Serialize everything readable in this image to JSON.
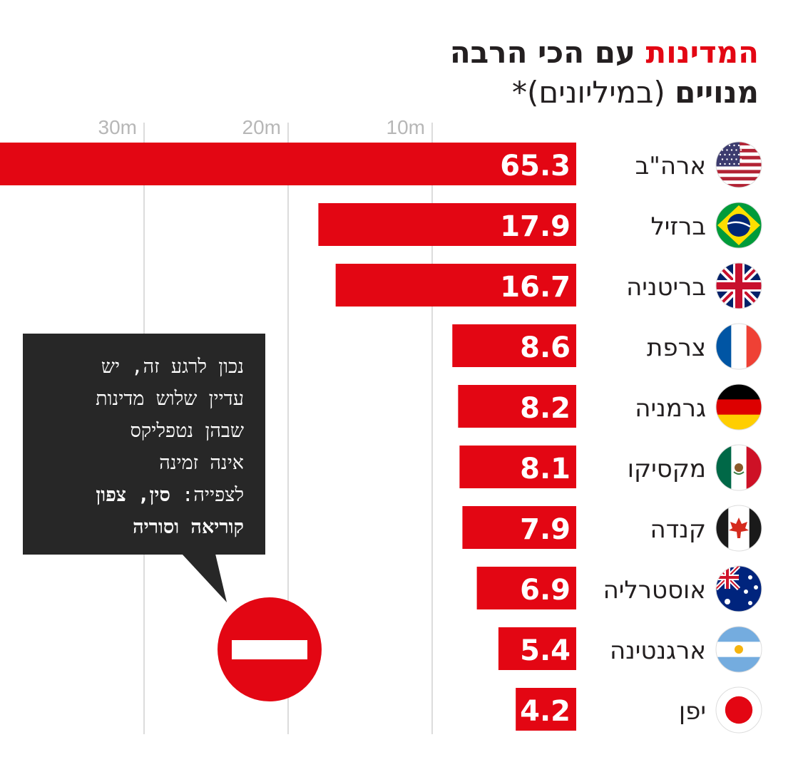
{
  "title": {
    "accent": "המדינות",
    "rest": "עם הכי הרבה"
  },
  "subtitle": {
    "bold": "מנויים",
    "regular": "(במיליונים)*"
  },
  "note": {
    "line1": "נכון לרגע זה, יש",
    "line2": "עדיין שלוש מדינות",
    "line3": "שבהן נטפליקס",
    "line4": "אינה זמינה",
    "line5_regular": "לצפייה: ",
    "line5_bold": "סין, צפון",
    "line6": "קוריאה וסוריה"
  },
  "icons": {
    "no_entry": "no-entry-icon"
  },
  "colors": {
    "bar": "#e30613",
    "note_bg": "#272727",
    "grid": "#d0d0d0"
  },
  "chart_data": {
    "type": "bar",
    "orientation": "horizontal",
    "categories": [
      "ארה\"ב",
      "ברזיל",
      "בריטניה",
      "צרפת",
      "גרמניה",
      "מקסיקו",
      "קנדה",
      "אוסטרליה",
      "ארגנטינה",
      "יפן"
    ],
    "values": [
      65.3,
      17.9,
      16.7,
      8.6,
      8.2,
      8.1,
      7.9,
      6.9,
      5.4,
      4.2
    ],
    "value_labels": [
      "65.3",
      "17.9",
      "16.7",
      "8.6",
      "8.2",
      "8.1",
      "7.9",
      "6.9",
      "5.4",
      "4.2"
    ],
    "flags": [
      "usa-flag-icon",
      "brazil-flag-icon",
      "uk-flag-icon",
      "france-flag-icon",
      "germany-flag-icon",
      "mexico-flag-icon",
      "canada-flag-icon",
      "australia-flag-icon",
      "argentina-flag-icon",
      "japan-flag-icon"
    ],
    "axis_ticks": [
      10,
      20,
      30
    ],
    "axis_tick_labels": [
      "10m",
      "20m",
      "30m"
    ],
    "axis_direction": "right-to-left",
    "grid": true,
    "legend": "none"
  }
}
